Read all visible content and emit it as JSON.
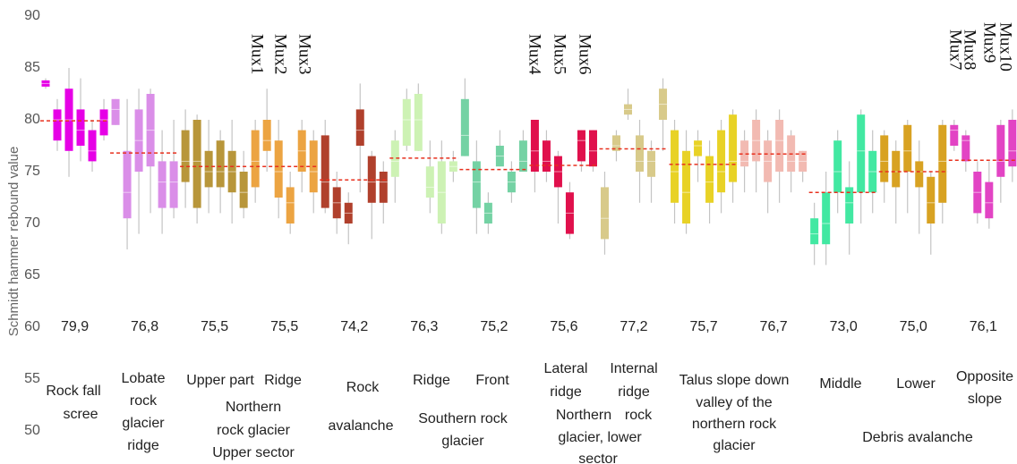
{
  "chart_data": {
    "type": "box",
    "ylabel": "Schmidt hammer rebound value",
    "ylim": [
      47,
      90
    ],
    "yticks": [
      50,
      55,
      60,
      65,
      70,
      75,
      80,
      85,
      90
    ],
    "mean_color": "#e8301e",
    "whisker_color": "#c4c4c4",
    "groups": [
      {
        "color": "#e600e6",
        "mean": 79.9,
        "mean_label": "79,9",
        "boxes": [
          [
            83,
            83.2,
            83.5,
            83.8,
            84
          ],
          [
            77,
            78,
            80,
            81,
            82
          ],
          [
            74.5,
            77,
            80,
            83,
            85
          ],
          [
            76,
            77.5,
            79,
            81,
            84
          ],
          [
            75,
            76,
            77,
            79,
            80
          ],
          [
            78,
            78.5,
            80,
            81,
            82
          ]
        ]
      },
      {
        "color": "#da8ee8",
        "mean": 76.8,
        "mean_label": "76,8",
        "boxes": [
          [
            79.5,
            79.5,
            81,
            82,
            82
          ],
          [
            67.5,
            70.5,
            73,
            77,
            82
          ],
          [
            69,
            75,
            78,
            81,
            83
          ],
          [
            71,
            75.5,
            79,
            82.5,
            83
          ],
          [
            69,
            71.5,
            74,
            76,
            79
          ],
          [
            70.5,
            71.5,
            74,
            76,
            80
          ]
        ]
      },
      {
        "color": "#b8963a",
        "mean": 75.5,
        "mean_label": "75,5",
        "boxes": [
          [
            71.5,
            74,
            76,
            79,
            81
          ],
          [
            70,
            71.5,
            76,
            80,
            80.5
          ],
          [
            71,
            73.5,
            75,
            77,
            80
          ],
          [
            71,
            73.5,
            75,
            78,
            79
          ],
          [
            70,
            73,
            75,
            77,
            80
          ],
          [
            70.5,
            71.5,
            73,
            75,
            77
          ]
        ]
      },
      {
        "color": "#eca442",
        "mean": 75.5,
        "mean_label": "75,5",
        "boxes": [
          [
            72,
            73.5,
            76,
            79,
            80
          ],
          [
            75,
            77,
            78,
            80,
            83
          ],
          [
            70.5,
            72.5,
            75,
            78,
            80
          ],
          [
            69,
            70,
            72,
            73.5,
            75
          ],
          [
            73,
            75,
            77,
            79,
            80
          ],
          [
            71,
            73,
            75,
            78,
            79
          ]
        ]
      },
      {
        "color": "#b0402c",
        "mean": 74.2,
        "mean_label": "74,2",
        "boxes": [
          [
            71,
            71.5,
            74,
            78.5,
            80
          ],
          [
            69,
            70.5,
            72,
            73.5,
            75
          ],
          [
            68,
            70,
            71,
            72,
            73
          ],
          [
            73,
            77.5,
            79,
            81,
            83.5
          ],
          [
            68.5,
            72,
            74,
            76.5,
            77
          ],
          [
            70,
            72,
            74,
            75,
            76
          ]
        ]
      },
      {
        "color": "#cdf2b4",
        "mean": 76.3,
        "mean_label": "76,3",
        "boxes": [
          [
            72,
            74.5,
            76,
            78,
            79
          ],
          [
            77,
            77.5,
            80,
            82,
            83
          ],
          [
            77,
            77,
            80,
            82.5,
            83.5
          ],
          [
            71,
            72.5,
            73.5,
            75.5,
            78
          ],
          [
            69,
            70,
            73,
            76,
            78
          ],
          [
            74,
            75,
            75.5,
            76,
            77
          ]
        ]
      },
      {
        "color": "#74d2a4",
        "mean": 75.2,
        "mean_label": "75,2",
        "boxes": [
          [
            76.5,
            76.5,
            78.5,
            82,
            84
          ],
          [
            69,
            71.5,
            74,
            76,
            78
          ],
          [
            69,
            70,
            71,
            72,
            73
          ],
          [
            75.5,
            75.5,
            76.5,
            77.5,
            79
          ],
          [
            72,
            73,
            74,
            75,
            76
          ],
          [
            75,
            75,
            76,
            78,
            79
          ]
        ]
      },
      {
        "color": "#e0104c",
        "mean": 75.6,
        "mean_label": "75,6",
        "boxes": [
          [
            73,
            75,
            77,
            80,
            80
          ],
          [
            74,
            75,
            76,
            78,
            79
          ],
          [
            70,
            73.5,
            75,
            76.5,
            77
          ],
          [
            68.5,
            69,
            71,
            73,
            74
          ],
          [
            75,
            76,
            78,
            79,
            79
          ],
          [
            75,
            75.5,
            77,
            79,
            79
          ]
        ]
      },
      {
        "color": "#d8ca8a",
        "mean": 77.2,
        "mean_label": "77,2",
        "boxes": [
          [
            67,
            68.5,
            70.5,
            73.5,
            75
          ],
          [
            76,
            77,
            77.5,
            78.5,
            79
          ],
          [
            80,
            80.5,
            81,
            81.5,
            83
          ],
          [
            72,
            75,
            76,
            78.5,
            80
          ],
          [
            72,
            74.5,
            76,
            77,
            78
          ],
          [
            77,
            80,
            81.5,
            83,
            84
          ]
        ]
      },
      {
        "color": "#e8d226",
        "mean": 75.7,
        "mean_label": "75,7",
        "boxes": [
          [
            70,
            72,
            75,
            79,
            80
          ],
          [
            69,
            70,
            73,
            77,
            79
          ],
          [
            74,
            76.5,
            77.5,
            78,
            79
          ],
          [
            70,
            72,
            74,
            76.5,
            78
          ],
          [
            71,
            73,
            75,
            79,
            80
          ],
          [
            72,
            74,
            76,
            80.5,
            81
          ]
        ]
      },
      {
        "color": "#f2bab2",
        "mean": 76.7,
        "mean_label": "76,7",
        "boxes": [
          [
            73,
            75.5,
            76,
            78,
            79
          ],
          [
            73,
            76,
            78,
            80,
            81
          ],
          [
            71,
            74,
            76,
            78,
            79
          ],
          [
            72,
            75,
            78,
            80,
            81
          ],
          [
            73,
            75,
            76,
            78.5,
            79
          ],
          [
            74,
            75,
            76,
            77,
            77
          ]
        ]
      },
      {
        "color": "#42e8a2",
        "mean": 73.0,
        "mean_label": "73,0",
        "boxes": [
          [
            66,
            68,
            69,
            70.5,
            72
          ],
          [
            66,
            68,
            70,
            73,
            75
          ],
          [
            71,
            73,
            75,
            78,
            79
          ],
          [
            67,
            70,
            72,
            73.5,
            76
          ],
          [
            70,
            73,
            77,
            80.5,
            81
          ],
          [
            71,
            73,
            75,
            77,
            79
          ]
        ]
      },
      {
        "color": "#d8a222",
        "mean": 75.0,
        "mean_label": "75,0",
        "boxes": [
          [
            72,
            74,
            76,
            78.5,
            79
          ],
          [
            70,
            73.5,
            75,
            77,
            78
          ],
          [
            71,
            75,
            77,
            79.5,
            80
          ],
          [
            69,
            73.5,
            75,
            76,
            78
          ],
          [
            67,
            70,
            72,
            74.5,
            75
          ],
          [
            70,
            72,
            76,
            79.5,
            80
          ]
        ]
      },
      {
        "color": "#e244c4",
        "mean": 76.1,
        "mean_label": "76,1",
        "boxes": [
          [
            77,
            77.5,
            79,
            79.5,
            80
          ],
          [
            75,
            76,
            78,
            78.5,
            79
          ],
          [
            70,
            71,
            73,
            75,
            76
          ],
          [
            69.5,
            70.5,
            72,
            74,
            76
          ],
          [
            72,
            74.5,
            76,
            79.5,
            80
          ],
          [
            74,
            75.5,
            77,
            80,
            81
          ]
        ]
      }
    ],
    "mux_labels": [
      "Mux1",
      "Mux2",
      "Mux3",
      "Mux4",
      "Mux5",
      "Mux6",
      "Mux7",
      "Mux8",
      "Mux9",
      "Mux10"
    ],
    "labels": [
      "Rock fall",
      "scree",
      "Lobate",
      "rock",
      "glacier",
      "ridge",
      "Upper part",
      "Ridge",
      "Northern",
      "rock glacier",
      "Upper sector",
      "Rock",
      "avalanche",
      "Ridge",
      "Front",
      "Southern rock",
      "glacier",
      "Lateral",
      "ridge",
      "Internal",
      "ridge",
      "Northern",
      "rock",
      "glacier, lower",
      "sector",
      "Talus slope down",
      "valley of the",
      "northern rock",
      "glacier",
      "Middle",
      "Lower",
      "Opposite",
      "slope",
      "Debris avalanche"
    ]
  }
}
